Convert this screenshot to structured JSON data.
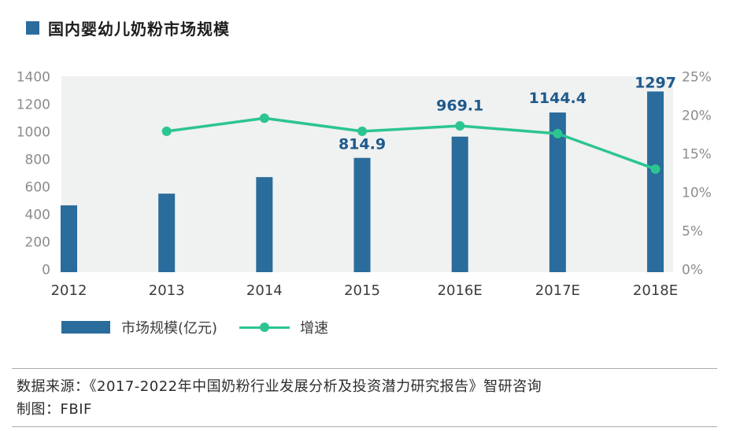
{
  "title": "国内婴幼儿奶粉市场规模",
  "legend": {
    "bar_label": "市场规模(亿元)",
    "line_label": "增速"
  },
  "footer": {
    "source": "数据来源：《2017-2022年中国奶粉行业发展分析及投资潜力研究报告》智研咨询",
    "credit": "制图：FBIF"
  },
  "colors": {
    "bar": "#2a6c9c",
    "line": "#2cc590",
    "value_label": "#1e5a8c",
    "plot_bg": "#f0f1f1",
    "axis_text": "#8c8c8c",
    "category_text": "#3c3c3c"
  },
  "chart_data": {
    "type": "bar",
    "subtype": "bar+line combo, dual axis",
    "title": "国内婴幼儿奶粉市场规模",
    "categories": [
      "2012",
      "2013",
      "2014",
      "2015",
      "2016E",
      "2017E",
      "2018E"
    ],
    "series": [
      {
        "name": "市场规模(亿元)",
        "type": "bar",
        "axis": "left",
        "values": [
          470,
          555,
          675,
          814.9,
          969.1,
          1144.4,
          1297
        ],
        "shown_labels": [
          null,
          null,
          null,
          "814.9",
          "969.1",
          "1144.4",
          "1297"
        ]
      },
      {
        "name": "增速",
        "type": "line",
        "axis": "right",
        "values": [
          null,
          18.0,
          19.7,
          18.0,
          18.7,
          17.7,
          13.1
        ]
      }
    ],
    "left_axis": {
      "min": 0,
      "max": 1400,
      "step": 200,
      "ticks": [
        "1400",
        "1200",
        "1000",
        "800",
        "600",
        "400",
        "200",
        "0"
      ]
    },
    "right_axis": {
      "min": 0,
      "max": 25,
      "step": 5,
      "ticks": [
        "25%",
        "20%",
        "15%",
        "10%",
        "5%",
        "0%"
      ]
    },
    "grid": false,
    "legend_position": "bottom-left",
    "plot_background": "#f0f1f1"
  }
}
